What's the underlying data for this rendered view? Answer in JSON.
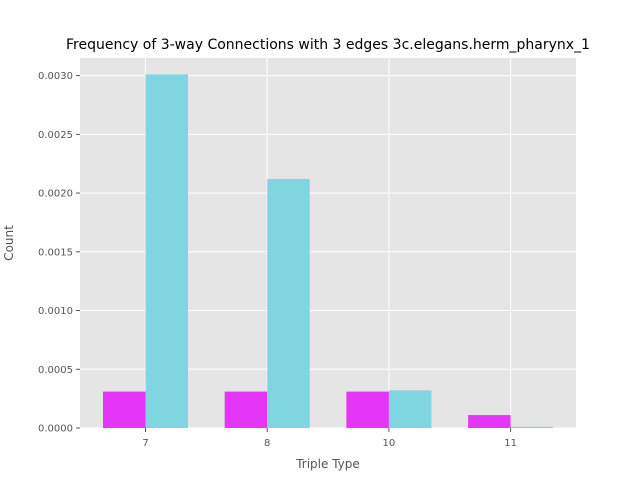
{
  "chart_data": {
    "type": "bar",
    "title": "Frequency of 3-way Connections with 3 edges 3c.elegans.herm_pharynx_1",
    "xlabel": "Triple Type",
    "ylabel": "Count",
    "categories": [
      "7",
      "8",
      "10",
      "11"
    ],
    "series": [
      {
        "color": "#e535f7",
        "values": [
          0.00031,
          0.00031,
          0.00031,
          0.00011
        ]
      },
      {
        "color": "#7fd6e0",
        "values": [
          0.00301,
          0.00212,
          0.00032,
          1e-05
        ]
      }
    ],
    "ylim": [
      0,
      0.00315
    ],
    "yticks": [
      "0.0000",
      "0.0005",
      "0.0010",
      "0.0015",
      "0.0020",
      "0.0025",
      "0.0030"
    ],
    "grid": true,
    "background": "#e5e5e5"
  }
}
